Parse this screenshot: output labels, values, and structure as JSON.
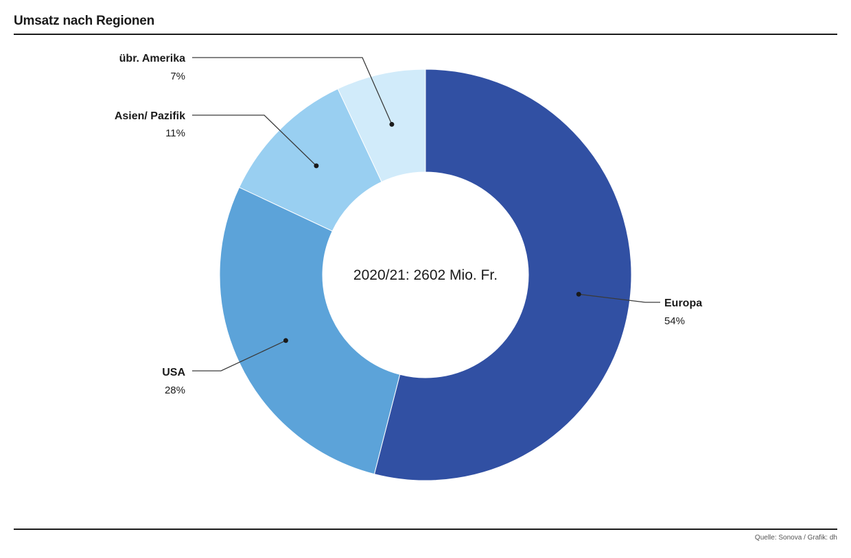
{
  "title": "Umsatz nach Regionen",
  "source": "Quelle: Sonova / Grafik: dh",
  "chart_data": {
    "type": "pie",
    "donut": true,
    "center_label": "2020/21: 2602 Mio. Fr.",
    "unit": "%",
    "slices": [
      {
        "label": "Europa",
        "value": 54,
        "display": "54%",
        "color": "#3150a3"
      },
      {
        "label": "USA",
        "value": 28,
        "display": "28%",
        "color": "#5ca3d9"
      },
      {
        "label": "Asien/ Pazifik",
        "value": 11,
        "display": "11%",
        "color": "#99cff1"
      },
      {
        "label": "übr. Amerika",
        "value": 7,
        "display": "7%",
        "color": "#d1ebfa"
      }
    ]
  }
}
